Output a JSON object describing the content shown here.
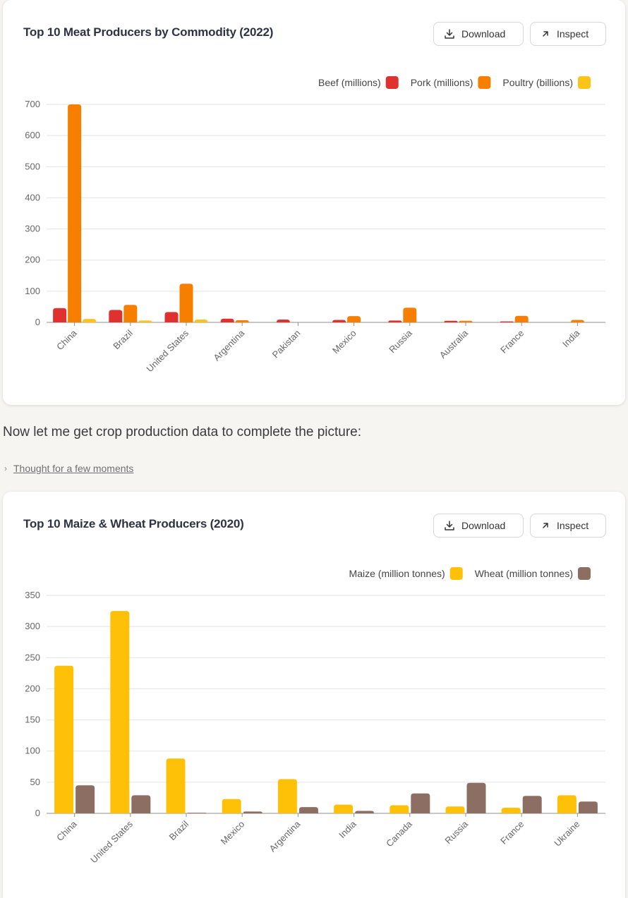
{
  "page": {
    "paragraph": "Now let me get crop production data to complete the picture:",
    "thought_label": "Thought for a few moments"
  },
  "card1": {
    "title": "Top 10 Meat Producers by Commodity (2022)",
    "download_label": "Download",
    "inspect_label": "Inspect"
  },
  "card2": {
    "title": "Top 10 Maize & Wheat Producers (2020)",
    "download_label": "Download",
    "inspect_label": "Inspect"
  },
  "chart_data": [
    {
      "type": "bar",
      "title": "Top 10 Meat Producers by Commodity (2022)",
      "categories": [
        "China",
        "Brazil",
        "United States",
        "Argentina",
        "Pakistan",
        "Mexico",
        "Russia",
        "Australia",
        "France",
        "India"
      ],
      "series": [
        {
          "name": "Beef (millions)",
          "color": "#e03131",
          "values": [
            46,
            40,
            33,
            12,
            9,
            8,
            6,
            5,
            3,
            0
          ]
        },
        {
          "name": "Pork (millions)",
          "color": "#f77f00",
          "values": [
            700,
            56,
            124,
            7,
            0,
            20,
            47,
            5,
            21,
            8
          ]
        },
        {
          "name": "Poultry (billions)",
          "color": "#fcc419",
          "values": [
            11,
            6,
            9,
            1,
            1,
            1,
            1,
            1,
            1,
            1
          ]
        }
      ],
      "ylim": [
        0,
        700
      ],
      "yticks": [
        0,
        100,
        200,
        300,
        400,
        500,
        600,
        700
      ],
      "grid": true,
      "legend": "top-right"
    },
    {
      "type": "bar",
      "title": "Top 10 Maize & Wheat Producers (2020)",
      "categories": [
        "China",
        "United States",
        "Brazil",
        "Mexico",
        "Argentina",
        "India",
        "Canada",
        "Russia",
        "France",
        "Ukraine"
      ],
      "series": [
        {
          "name": "Maize (million tonnes)",
          "color": "#ffc107",
          "values": [
            237,
            325,
            88,
            23,
            55,
            14,
            13,
            11,
            9,
            29
          ]
        },
        {
          "name": "Wheat (million tonnes)",
          "color": "#8d6e63",
          "values": [
            45,
            29,
            1,
            3,
            10,
            4,
            32,
            49,
            28,
            19
          ]
        }
      ],
      "ylim": [
        0,
        350
      ],
      "yticks": [
        0,
        50,
        100,
        150,
        200,
        250,
        300,
        350
      ],
      "grid": true,
      "legend": "top-right"
    }
  ]
}
